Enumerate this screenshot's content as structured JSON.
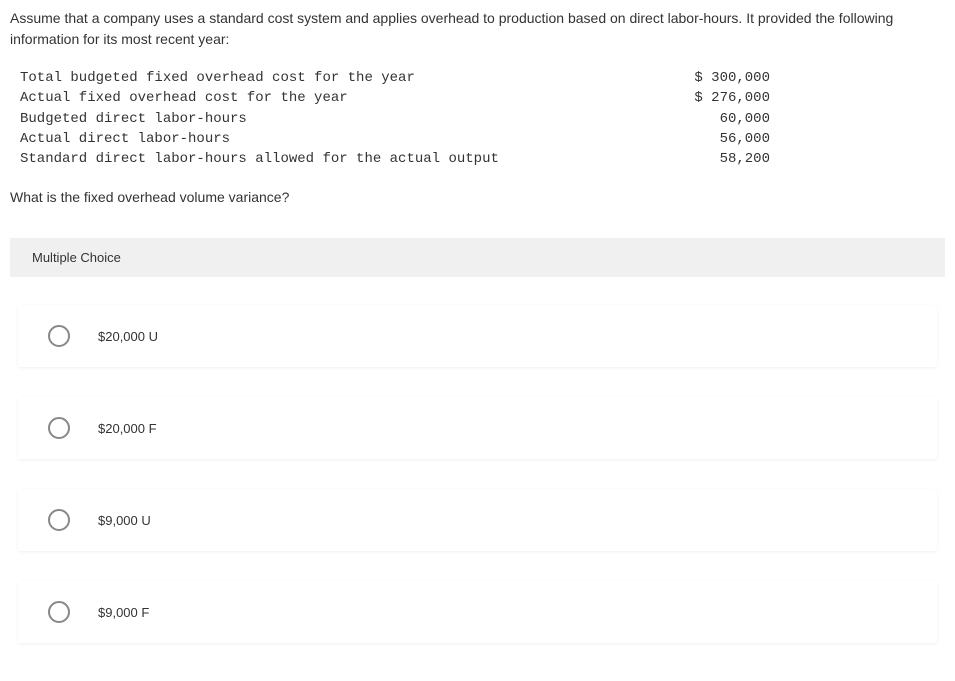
{
  "intro": "Assume that a company uses a standard cost system and applies overhead to production based on direct labor-hours. It provided the following information for its most recent year:",
  "data_rows": [
    {
      "label": "Total budgeted fixed overhead cost for the year",
      "value": "$ 300,000"
    },
    {
      "label": "Actual fixed overhead cost for the year",
      "value": "$ 276,000"
    },
    {
      "label": "Budgeted direct labor-hours",
      "value": "60,000"
    },
    {
      "label": "Actual direct labor-hours",
      "value": "56,000"
    },
    {
      "label": "Standard direct labor-hours allowed for the actual output",
      "value": "58,200"
    }
  ],
  "question": "What is the fixed overhead volume variance?",
  "mc_header": "Multiple Choice",
  "options": [
    {
      "label": "$20,000 U"
    },
    {
      "label": "$20,000 F"
    },
    {
      "label": "$9,000 U"
    },
    {
      "label": "$9,000 F"
    }
  ],
  "colors": {
    "page_bg": "#ffffff",
    "text": "#333333",
    "mc_header_bg": "#f0f0f0",
    "option_bg": "#ffffff",
    "radio_border": "#888888"
  }
}
